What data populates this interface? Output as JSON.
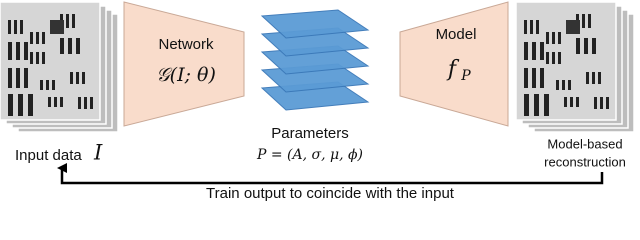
{
  "input": {
    "label": "Input data",
    "symbol": "I"
  },
  "network": {
    "title": "Network",
    "formula": "𝒢(I; θ)"
  },
  "parameters": {
    "title": "Parameters",
    "formula": "P = (A, σ, μ, ϕ)"
  },
  "model": {
    "title": "Model",
    "formula": "f",
    "subscript": "P"
  },
  "output": {
    "label_lines": [
      "Model-based",
      "reconstruction"
    ]
  },
  "loop": {
    "label": "Train output to coincide with the input"
  }
}
